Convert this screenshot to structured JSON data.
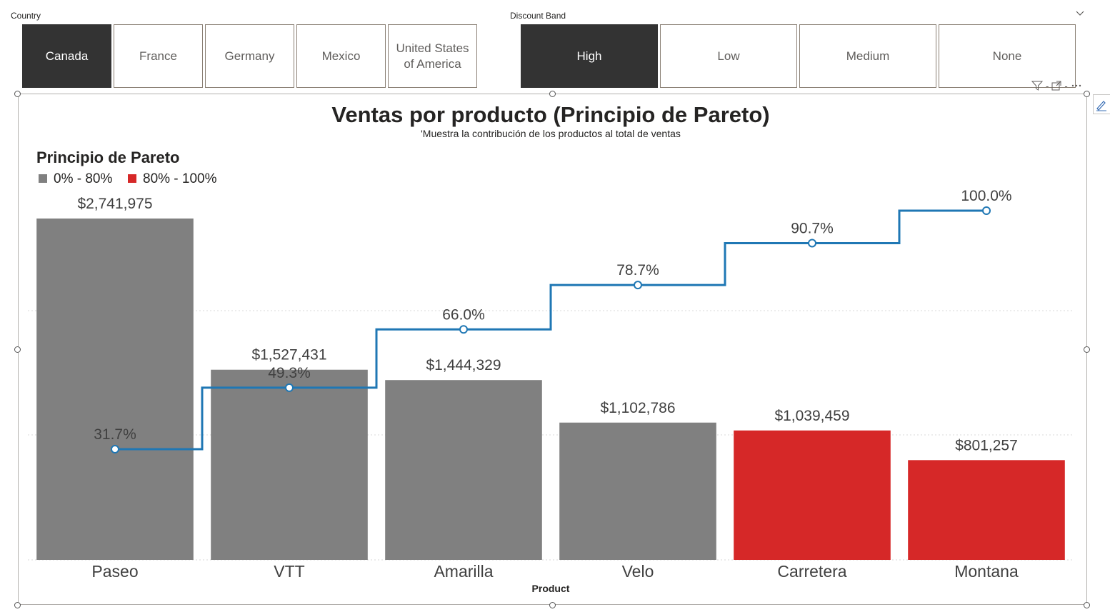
{
  "slicers": {
    "country": {
      "title": "Country",
      "options": [
        {
          "label": "Canada",
          "selected": true
        },
        {
          "label": "France",
          "selected": false
        },
        {
          "label": "Germany",
          "selected": false
        },
        {
          "label": "Mexico",
          "selected": false
        },
        {
          "label": "United States of America",
          "selected": false
        }
      ]
    },
    "discount_band": {
      "title": "Discount Band",
      "options": [
        {
          "label": "High",
          "selected": true
        },
        {
          "label": "Low",
          "selected": false
        },
        {
          "label": "Medium",
          "selected": false
        },
        {
          "label": "None",
          "selected": false
        }
      ]
    }
  },
  "colors": {
    "bar_main": "#808080",
    "bar_tail": "#d62828",
    "line": "#1f77b4",
    "selected_tile": "#333333"
  },
  "chart_data": {
    "type": "bar",
    "title": "Ventas por producto (Principio de Pareto)",
    "subtitle": "'Muestra la contribución de los productos al total de ventas",
    "xlabel": "Product",
    "ylabel": "",
    "legend_title": "Principio de Pareto",
    "legend_position": "top-left",
    "legend": [
      {
        "name": "0% - 80%",
        "color": "#808080"
      },
      {
        "name": "80% - 100%",
        "color": "#d62828"
      }
    ],
    "categories": [
      "Paseo",
      "VTT",
      "Amarilla",
      "Velo",
      "Carretera",
      "Montana"
    ],
    "series": [
      {
        "values": [
          2741975,
          1527431,
          1444329,
          1102786,
          1039459,
          801257
        ],
        "labels": [
          "$2,741,975",
          "$1,527,431",
          "$1,444,329",
          "$1,102,786",
          "$1,039,459",
          "$801,257"
        ],
        "group": [
          "0% - 80%",
          "0% - 80%",
          "0% - 80%",
          "0% - 80%",
          "80% - 100%",
          "80% - 100%"
        ]
      },
      {
        "line": "step",
        "values": [
          31.7,
          49.3,
          66.0,
          78.7,
          90.7,
          100.0
        ],
        "labels": [
          "31.7%",
          "49.3%",
          "66.0%",
          "78.7%",
          "90.7%",
          "100.0%"
        ]
      }
    ],
    "ylim": [
      0,
      2741975
    ],
    "y2lim": [
      0,
      100
    ],
    "grid": true
  }
}
